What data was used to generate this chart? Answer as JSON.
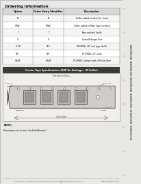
{
  "bg_color": "#e8e8e4",
  "page_bg": "#ffffff",
  "title_ordering": "Ordering Information",
  "table_headers": [
    "Option",
    "Order Entry Identifier",
    "Description"
  ],
  "table_rows": [
    [
      "N",
      "N",
      "Suffix added to identifier (new)"
    ],
    [
      "SMW",
      "SMW",
      "Suffix added to Main Type (surface)"
    ],
    [
      "T",
      "T",
      "Tape and reel (bulk)"
    ],
    [
      "G",
      "G",
      "Green/Halogen free"
    ],
    [
      "P 10",
      "P10",
      "P10/REEL 10\" reel type (bulk)"
    ],
    [
      "R2T",
      "R2T",
      "P10/REEL 10\" units"
    ],
    [
      "SR2M",
      "SR2M",
      "P10/REEL Surface with 4 Pocket Reel"
    ]
  ],
  "tape_title": "Carrier Tape Specifications (SOP-8n Package, ~M Suffix)",
  "tape_title_bg": "#3a3a3a",
  "tape_title_color": "#ffffff",
  "note_line1": "NOTE:",
  "note_line2": "Dimensions are in mm. (inch)(millimeter)",
  "footer_text": "MOC3041M  MOC3042M  MOC3043M  MOC3051  MOC3052M  MOC3052SR2M  Rev. 1.0.1",
  "footer_right": "www.fairchildsemi.com",
  "page_number": "9",
  "sidebar_bg": "#c8c8c0",
  "sidebar_lines": [
    "MOC3041SR2M,",
    "MOC3042SR2M,",
    "MOC3043SR2M,",
    "MOC3051SR2M,",
    "MOC3052SR2M,",
    "MOC3062SR2M"
  ]
}
